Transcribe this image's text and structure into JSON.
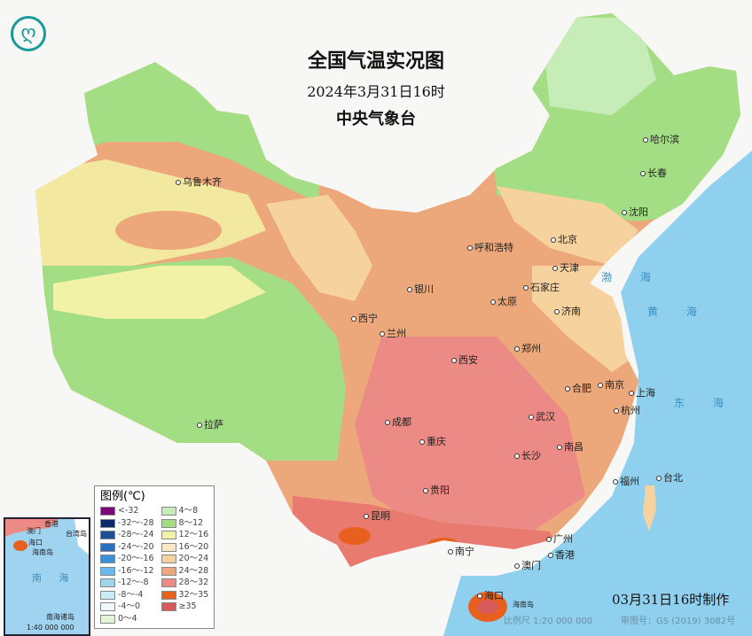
{
  "header": {
    "title": "全国气温实况图",
    "datetime": "2024年3月31日16时",
    "agency": "中央气象台"
  },
  "logo": {
    "icon": "cma-logo-icon",
    "color": "#1a9a9a"
  },
  "cities": [
    "乌鲁木齐",
    "拉萨",
    "西宁",
    "兰州",
    "银川",
    "呼和浩特",
    "北京",
    "天津",
    "石家庄",
    "太原",
    "济南",
    "郑州",
    "西安",
    "成都",
    "重庆",
    "贵阳",
    "昆明",
    "南宁",
    "广州",
    "澳门",
    "香港",
    "海口",
    "长沙",
    "武汉",
    "南昌",
    "合肥",
    "南京",
    "上海",
    "杭州",
    "福州",
    "台北",
    "哈尔滨",
    "长春",
    "沈阳"
  ],
  "seas": {
    "bohai": "渤 海",
    "huanghai": "黄 海",
    "donghai": "东 海"
  },
  "legend": {
    "title": "图例(℃)",
    "items": [
      {
        "label": "<-32",
        "color": "#7a0a78"
      },
      {
        "label": "-32～-28",
        "color": "#0a2a6a"
      },
      {
        "label": "-28～-24",
        "color": "#1d4e96"
      },
      {
        "label": "-24～-20",
        "color": "#2e6fbd"
      },
      {
        "label": "-20～-16",
        "color": "#3d8fd6"
      },
      {
        "label": "-16～-12",
        "color": "#6cb8ec"
      },
      {
        "label": "-12～-8",
        "color": "#a0d4ea"
      },
      {
        "label": "-8～-4",
        "color": "#c8eef4"
      },
      {
        "label": "-4～0",
        "color": "#eef9fb"
      },
      {
        "label": "0～4",
        "color": "#e2f5d4"
      },
      {
        "label": "4～8",
        "color": "#c6ecb8"
      },
      {
        "label": "8～12",
        "color": "#a4de84"
      },
      {
        "label": "12～16",
        "color": "#f2f2a6"
      },
      {
        "label": "16～20",
        "color": "#f8e8c4"
      },
      {
        "label": "20～24",
        "color": "#f6d39e"
      },
      {
        "label": "24～28",
        "color": "#eca87a"
      },
      {
        "label": "28～32",
        "color": "#ec8a86"
      },
      {
        "label": "32～35",
        "color": "#e8601e"
      },
      {
        "label": "≥35",
        "color": "#d85a5a"
      }
    ]
  },
  "inset": {
    "labels": [
      "澳门",
      "香港",
      "台湾岛",
      "海口",
      "海南岛",
      "南 海",
      "南海诸岛"
    ],
    "scale": "1:40 000 000"
  },
  "footer": {
    "made": "03月31日16时制作",
    "scale": "比例尺 1:20 000 000",
    "approval": "审图号：GS (2019) 3082号",
    "hainan": "海南岛"
  }
}
